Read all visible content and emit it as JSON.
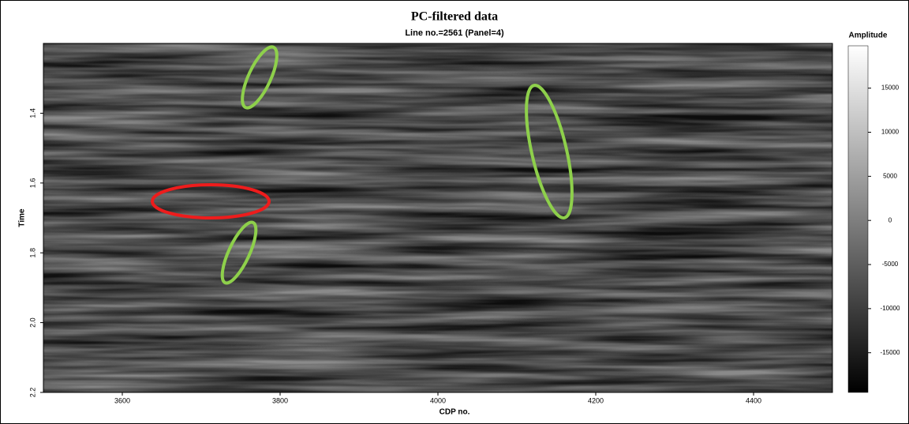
{
  "chart_data": {
    "type": "heatmap",
    "title": "PC-filtered data",
    "subtitle": "Line no.=2561 (Panel=4)",
    "xlabel": "CDP no.",
    "ylabel": "Time",
    "xlim": [
      3500,
      4500
    ],
    "xticks": [
      3600,
      3800,
      4000,
      4200,
      4400
    ],
    "ylim": [
      1.2,
      2.2
    ],
    "y_inverted": true,
    "yticks": [
      1.4,
      1.6,
      1.8,
      {
        "value": 2,
        "label": "2.0"
      },
      2.2
    ],
    "colorbar": {
      "label": "Amplitude",
      "colors": [
        "#000000",
        "#ffffff"
      ],
      "lim": [
        -19500,
        19800
      ],
      "ticks": [
        -15000,
        -10000,
        -5000,
        0,
        5000,
        10000,
        15000
      ]
    }
  }
}
